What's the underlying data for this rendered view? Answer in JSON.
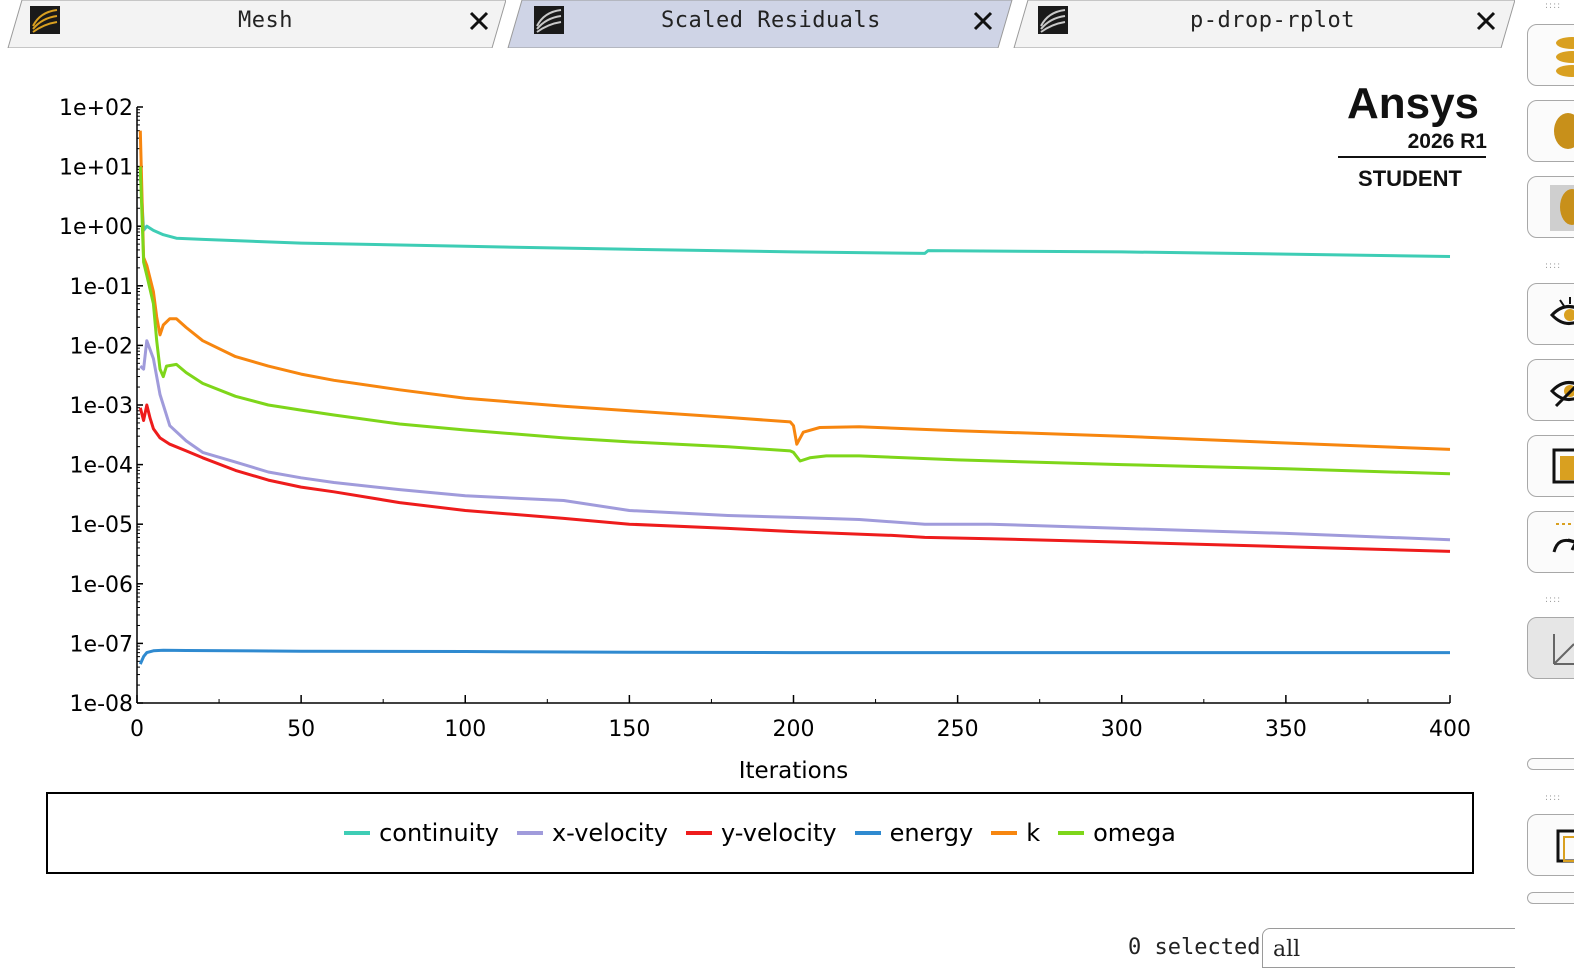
{
  "tabs": [
    {
      "label": "Mesh",
      "icon": "residual-plot-icon",
      "active": false
    },
    {
      "label": "Scaled Residuals",
      "icon": "residual-plot-icon",
      "active": true
    },
    {
      "label": "p-drop-rplot",
      "icon": "residual-plot-icon",
      "active": false
    }
  ],
  "logo": {
    "brand": "Ansys",
    "version": "2026 R1",
    "edition": "STUDENT"
  },
  "colors": {
    "continuity": "#3ecdb5",
    "x-velocity": "#a09bdb",
    "y-velocity": "#ee1c1c",
    "energy": "#2f8ad0",
    "k": "#f7860f",
    "omega": "#7ed61a",
    "active_tab": "#cfd4e6"
  },
  "chart_data": {
    "type": "line",
    "title": "",
    "xlabel": "Iterations",
    "ylabel": "",
    "yscale": "log",
    "xlim": [
      0,
      400
    ],
    "ylim": [
      1e-08,
      100
    ],
    "xticks": [
      "0",
      "50",
      "100",
      "150",
      "200",
      "250",
      "300",
      "350",
      "400"
    ],
    "yticks": [
      "1e-08",
      "1e-07",
      "1e-06",
      "1e-05",
      "1e-04",
      "1e-03",
      "1e-02",
      "1e-01",
      "1e+00",
      "1e+01",
      "1e+02"
    ],
    "grid": false,
    "legend_position": "bottom",
    "series": [
      {
        "name": "continuity",
        "points": [
          [
            1,
            8
          ],
          [
            2,
            0.85
          ],
          [
            3,
            1.0
          ],
          [
            5,
            0.85
          ],
          [
            8,
            0.72
          ],
          [
            12,
            0.63
          ],
          [
            20,
            0.6
          ],
          [
            50,
            0.52
          ],
          [
            100,
            0.46
          ],
          [
            150,
            0.41
          ],
          [
            200,
            0.37
          ],
          [
            240,
            0.35
          ],
          [
            241,
            0.39
          ],
          [
            300,
            0.37
          ],
          [
            350,
            0.34
          ],
          [
            400,
            0.31
          ]
        ]
      },
      {
        "name": "x-velocity",
        "points": [
          [
            1,
            0.0045
          ],
          [
            2,
            0.004
          ],
          [
            3,
            0.012
          ],
          [
            5,
            0.006
          ],
          [
            7,
            0.0015
          ],
          [
            10,
            0.00045
          ],
          [
            15,
            0.00025
          ],
          [
            20,
            0.00016
          ],
          [
            30,
            0.00011
          ],
          [
            40,
            7.5e-05
          ],
          [
            50,
            6e-05
          ],
          [
            60,
            5e-05
          ],
          [
            80,
            3.8e-05
          ],
          [
            100,
            3e-05
          ],
          [
            130,
            2.5e-05
          ],
          [
            150,
            1.7e-05
          ],
          [
            180,
            1.4e-05
          ],
          [
            200,
            1.3e-05
          ],
          [
            220,
            1.2e-05
          ],
          [
            240,
            1e-05
          ],
          [
            260,
            1e-05
          ],
          [
            300,
            8.5e-06
          ],
          [
            350,
            7e-06
          ],
          [
            400,
            5.5e-06
          ]
        ]
      },
      {
        "name": "y-velocity",
        "points": [
          [
            1,
            0.0009
          ],
          [
            2,
            0.00055
          ],
          [
            3,
            0.001
          ],
          [
            4,
            0.0006
          ],
          [
            5,
            0.0004
          ],
          [
            7,
            0.00028
          ],
          [
            10,
            0.00022
          ],
          [
            15,
            0.00017
          ],
          [
            20,
            0.00013
          ],
          [
            30,
            8e-05
          ],
          [
            40,
            5.5e-05
          ],
          [
            50,
            4.2e-05
          ],
          [
            60,
            3.5e-05
          ],
          [
            80,
            2.3e-05
          ],
          [
            100,
            1.7e-05
          ],
          [
            130,
            1.25e-05
          ],
          [
            150,
            1e-05
          ],
          [
            180,
            8.5e-06
          ],
          [
            200,
            7.5e-06
          ],
          [
            230,
            6.5e-06
          ],
          [
            240,
            6e-06
          ],
          [
            260,
            5.7e-06
          ],
          [
            300,
            5e-06
          ],
          [
            350,
            4.2e-06
          ],
          [
            400,
            3.5e-06
          ]
        ]
      },
      {
        "name": "energy",
        "points": [
          [
            1,
            4.5e-08
          ],
          [
            2,
            6e-08
          ],
          [
            3,
            7e-08
          ],
          [
            5,
            7.5e-08
          ],
          [
            8,
            7.7e-08
          ],
          [
            15,
            7.6e-08
          ],
          [
            50,
            7.4e-08
          ],
          [
            100,
            7.3e-08
          ],
          [
            150,
            7.1e-08
          ],
          [
            200,
            7e-08
          ],
          [
            250,
            7e-08
          ],
          [
            300,
            7e-08
          ],
          [
            350,
            7e-08
          ],
          [
            400,
            7e-08
          ]
        ]
      },
      {
        "name": "k",
        "points": [
          [
            1,
            40
          ],
          [
            2,
            0.3
          ],
          [
            3,
            0.22
          ],
          [
            5,
            0.08
          ],
          [
            6,
            0.03
          ],
          [
            7,
            0.015
          ],
          [
            8,
            0.022
          ],
          [
            10,
            0.028
          ],
          [
            12,
            0.028
          ],
          [
            15,
            0.02
          ],
          [
            20,
            0.012
          ],
          [
            30,
            0.0065
          ],
          [
            40,
            0.0045
          ],
          [
            50,
            0.0033
          ],
          [
            60,
            0.0026
          ],
          [
            80,
            0.0018
          ],
          [
            100,
            0.0013
          ],
          [
            130,
            0.00095
          ],
          [
            150,
            0.0008
          ],
          [
            180,
            0.00062
          ],
          [
            199,
            0.00052
          ],
          [
            200,
            0.00045
          ],
          [
            201,
            0.00022
          ],
          [
            203,
            0.00035
          ],
          [
            208,
            0.00042
          ],
          [
            220,
            0.00043
          ],
          [
            250,
            0.00037
          ],
          [
            300,
            0.0003
          ],
          [
            350,
            0.00023
          ],
          [
            400,
            0.00018
          ]
        ]
      },
      {
        "name": "omega",
        "points": [
          [
            1,
            10
          ],
          [
            2,
            0.25
          ],
          [
            3,
            0.15
          ],
          [
            5,
            0.05
          ],
          [
            6,
            0.012
          ],
          [
            7,
            0.004
          ],
          [
            8,
            0.003
          ],
          [
            9,
            0.0045
          ],
          [
            12,
            0.0048
          ],
          [
            15,
            0.0035
          ],
          [
            20,
            0.0023
          ],
          [
            30,
            0.0014
          ],
          [
            40,
            0.001
          ],
          [
            50,
            0.00082
          ],
          [
            60,
            0.00068
          ],
          [
            80,
            0.00048
          ],
          [
            100,
            0.00038
          ],
          [
            130,
            0.00028
          ],
          [
            150,
            0.00024
          ],
          [
            180,
            0.0002
          ],
          [
            199,
            0.00017
          ],
          [
            200,
            0.00016
          ],
          [
            202,
            0.000115
          ],
          [
            205,
            0.00013
          ],
          [
            210,
            0.00014
          ],
          [
            220,
            0.00014
          ],
          [
            250,
            0.00012
          ],
          [
            300,
            0.0001
          ],
          [
            350,
            8.5e-05
          ],
          [
            400,
            7e-05
          ]
        ]
      }
    ]
  },
  "status": {
    "selected_count": "0 selected",
    "filter_value": "all"
  },
  "toolbar": {
    "buttons": [
      "colormap-icon",
      "contour-icon",
      "mesh-display-icon",
      "view-icon",
      "hide-view-icon",
      "region-icon",
      "rotate-icon",
      "axes-icon",
      "window-icon"
    ]
  }
}
